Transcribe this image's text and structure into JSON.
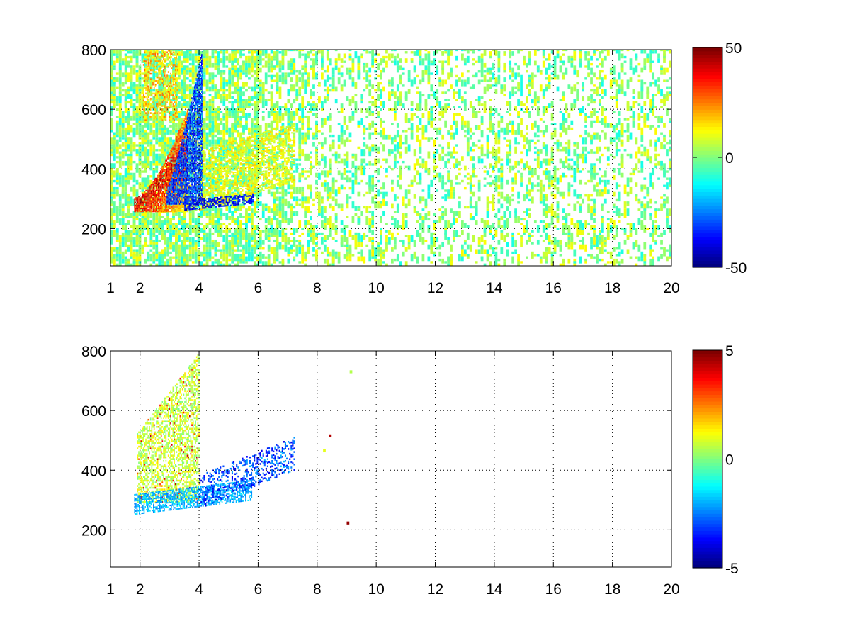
{
  "chart_data": [
    {
      "type": "heatmap",
      "xlabel": "",
      "ylabel": "",
      "xlim": [
        1,
        20
      ],
      "ylim": [
        75,
        800
      ],
      "x_ticks": [
        1,
        2,
        4,
        6,
        8,
        10,
        12,
        14,
        16,
        18,
        20
      ],
      "y_ticks": [
        200,
        400,
        600,
        800
      ],
      "grid": true,
      "grid_style": "dotted",
      "colormap": "jet",
      "colorbar": {
        "min": -50,
        "max": 50,
        "ticks": [
          -50,
          0,
          50
        ],
        "placement": "right"
      },
      "features": [
        {
          "name": "positive ridge",
          "x_start": 1.8,
          "x_end": 3.6,
          "y_low": 260,
          "y_high": 560,
          "value": 45
        },
        {
          "name": "negative ridge",
          "x_start": 2.9,
          "x_end": 4.1,
          "y_low": 280,
          "y_high": 800,
          "value": -40
        },
        {
          "name": "weak positive band",
          "x_start": 4.0,
          "x_end": 7.2,
          "y_low": 290,
          "y_high": 500,
          "value": 12
        },
        {
          "name": "background noise",
          "x_start": 1,
          "x_end": 20,
          "y_low": 75,
          "y_high": 800,
          "value_range": [
            -12,
            12
          ]
        }
      ]
    },
    {
      "type": "heatmap",
      "xlabel": "",
      "ylabel": "",
      "xlim": [
        1,
        20
      ],
      "ylim": [
        75,
        800
      ],
      "x_ticks": [
        1,
        2,
        4,
        6,
        8,
        10,
        12,
        14,
        16,
        18,
        20
      ],
      "y_ticks": [
        200,
        400,
        600,
        800
      ],
      "grid": true,
      "grid_style": "dotted",
      "colormap": "jet",
      "colorbar": {
        "min": -5,
        "max": 5,
        "ticks": [
          -5,
          0,
          5
        ],
        "placement": "right"
      },
      "features": [
        {
          "name": "positive cluster",
          "x_start": 1.9,
          "x_end": 4.0,
          "y_low": 260,
          "y_high": 790,
          "value": 0.8
        },
        {
          "name": "negative lower band",
          "x_start": 1.8,
          "x_end": 5.8,
          "y_low": 230,
          "y_high": 340,
          "value": -2.2
        },
        {
          "name": "negative tail",
          "x_start": 4.0,
          "x_end": 7.2,
          "y_low": 280,
          "y_high": 460,
          "value": -3.8
        },
        {
          "name": "isolated points",
          "points": [
            [
              8.4,
              510,
              4.5
            ],
            [
              9.0,
              218,
              4.8
            ],
            [
              9.1,
              725,
              0.5
            ],
            [
              8.2,
              460,
              1.0
            ]
          ]
        }
      ]
    }
  ]
}
